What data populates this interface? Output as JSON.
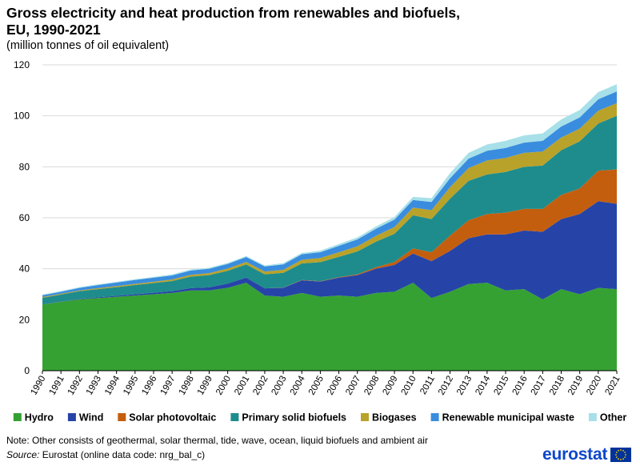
{
  "title_line1": "Gross electricity and heat production from renewables and biofuels,",
  "title_line2": "EU, 1990-2021",
  "subtitle": "(million tonnes of oil equivalent)",
  "note": "Note: Other consists of geothermal, solar thermal, tide, wave, ocean, liquid biofuels and ambient air",
  "source_label": "Source:",
  "source_text": " Eurostat (online data code: nrg_bal_c)",
  "logo_text": "eurostat",
  "colors": {
    "grid": "#d9d9d9",
    "axis": "#000000",
    "logo_blue": "#0e47cb",
    "flag_blue": "#003399",
    "flag_star": "#ffcc00"
  },
  "chart_data": {
    "type": "area",
    "stacked": true,
    "title": "Gross electricity and heat production from renewables and biofuels, EU, 1990-2021",
    "subtitle": "(million tonnes of oil equivalent)",
    "xlabel": "",
    "ylabel": "",
    "ylim": [
      0,
      120
    ],
    "yticks": [
      0,
      20,
      40,
      60,
      80,
      100,
      120
    ],
    "grid": true,
    "legend_position": "bottom",
    "categories": [
      "1990",
      "1991",
      "1992",
      "1993",
      "1994",
      "1995",
      "1996",
      "1997",
      "1998",
      "1999",
      "2000",
      "2001",
      "2002",
      "2003",
      "2004",
      "2005",
      "2006",
      "2007",
      "2008",
      "2009",
      "2010",
      "2011",
      "2012",
      "2013",
      "2014",
      "2015",
      "2016",
      "2017",
      "2018",
      "2019",
      "2020",
      "2021"
    ],
    "series": [
      {
        "name": "Hydro",
        "color": "#35a133",
        "values": [
          26,
          27,
          28,
          28.5,
          29,
          29.5,
          30,
          30.5,
          31.5,
          31.5,
          32.5,
          34.5,
          29.5,
          29,
          30.5,
          29,
          29.5,
          29,
          30.5,
          31,
          34.5,
          28.5,
          31,
          34,
          34.5,
          31.5,
          32,
          28,
          32,
          30,
          32.5,
          32
        ]
      },
      {
        "name": "Wind",
        "color": "#2644a7",
        "values": [
          0.1,
          0.1,
          0.2,
          0.3,
          0.4,
          0.5,
          0.6,
          0.7,
          0.9,
          1.2,
          1.7,
          2.0,
          2.8,
          3.5,
          5.0,
          6.0,
          7.0,
          8.5,
          9.5,
          10.5,
          11.5,
          14.5,
          16,
          18,
          19,
          22,
          23,
          26.5,
          27.5,
          31.5,
          34,
          33.5
        ]
      },
      {
        "name": "Solar photovoltaic",
        "color": "#c45e0f",
        "values": [
          0,
          0,
          0,
          0,
          0,
          0,
          0,
          0,
          0,
          0,
          0,
          0,
          0,
          0.1,
          0.1,
          0.1,
          0.2,
          0.3,
          0.6,
          1.2,
          2.0,
          3.5,
          6,
          7,
          8,
          8.5,
          8.5,
          9,
          9.5,
          10,
          12,
          13.5
        ]
      },
      {
        "name": "Primary solid biofuels",
        "color": "#1e8c8c",
        "values": [
          2.5,
          2.8,
          3.0,
          3.2,
          3.4,
          3.6,
          3.8,
          4.0,
          4.5,
          4.8,
          5.0,
          5.2,
          5.5,
          5.8,
          6.5,
          7.5,
          8.0,
          9.0,
          10.0,
          11.0,
          13.0,
          13.0,
          14.5,
          15.5,
          15.5,
          16,
          16.5,
          17,
          17.5,
          18.5,
          18.5,
          21
        ]
      },
      {
        "name": "Biogases",
        "color": "#b9a22a",
        "values": [
          0.3,
          0.3,
          0.3,
          0.4,
          0.4,
          0.5,
          0.5,
          0.6,
          0.7,
          0.8,
          0.9,
          1.0,
          1.1,
          1.2,
          1.4,
          1.6,
          1.8,
          2.0,
          2.3,
          2.7,
          3.0,
          3.5,
          4.5,
          5,
          5.5,
          5.5,
          5.5,
          5.5,
          5,
          5,
          5,
          5
        ]
      },
      {
        "name": "Renewable municipal waste",
        "color": "#3a8dde",
        "values": [
          0.7,
          0.8,
          1.0,
          1.2,
          1.4,
          1.5,
          1.6,
          1.6,
          1.7,
          1.7,
          1.8,
          1.9,
          2.0,
          2.1,
          2.2,
          2.3,
          2.5,
          2.7,
          2.8,
          2.9,
          3.0,
          3.2,
          3.5,
          3.7,
          3.8,
          3.9,
          4.0,
          4.2,
          4.3,
          4.4,
          4.5,
          4.6
        ]
      },
      {
        "name": "Other",
        "color": "#a7e0e8",
        "values": [
          0.3,
          0.3,
          0.3,
          0.3,
          0.3,
          0.3,
          0.3,
          0.4,
          0.4,
          0.4,
          0.4,
          0.4,
          0.4,
          0.5,
          0.5,
          0.6,
          0.7,
          0.8,
          0.9,
          1.0,
          1.2,
          1.5,
          2.0,
          2.3,
          2.5,
          2.8,
          2.8,
          2.9,
          2.8,
          2.9,
          2.8,
          2.8
        ]
      }
    ]
  }
}
